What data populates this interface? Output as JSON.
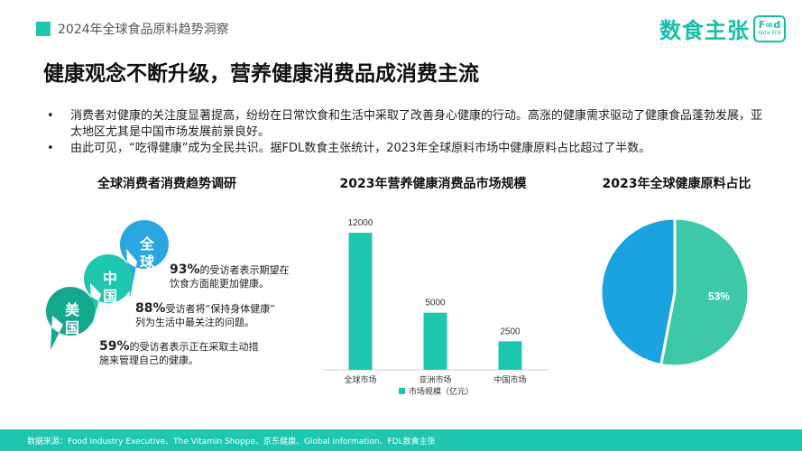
{
  "header": {
    "section_title": "2024年全球食品原料趋势洞察"
  },
  "logo": {
    "brand": "数食主张",
    "box_top": "F∞d",
    "box_bottom": "data link"
  },
  "main_title": "健康观念不断升级，营养健康消费品成消费主流",
  "bullets": [
    "消费者对健康的关注度显著提高，纷纷在日常饮食和生活中采取了改善身心健康的行动。高涨的健康需求驱动了健康食品蓬勃发展，亚太地区尤其是中国市场发展前景良好。",
    "由此可见，“吃得健康”成为全民共识。据FDL数食主张统计，2023年全球原料市场中健康原料占比超过了半数。"
  ],
  "bullet_marker": "•",
  "survey": {
    "title": "全球消费者消费趋势调研",
    "bubbles": [
      {
        "label": "全球",
        "color": "#2aa7e0"
      },
      {
        "label": "中国",
        "color": "#1fc7b0"
      },
      {
        "label": "美国",
        "color": "#14a88f"
      }
    ],
    "stats": [
      {
        "percent": "93%",
        "text_line1": "的受访者表示期望在",
        "text_line2": "饮食方面能更加健康。"
      },
      {
        "percent": "88%",
        "text_line1": "受访者将“保持身体健康”",
        "text_line2": "列为生活中最关注的问题。"
      },
      {
        "percent": "59%",
        "text_line1": "的受访者表示正在采取主动措",
        "text_line2": "施来管理自己的健康。"
      }
    ]
  },
  "market": {
    "title": "2023年营养健康消费品市场规模"
  },
  "share": {
    "title": "2023年全球健康原料占比"
  },
  "chart_data": [
    {
      "type": "bar",
      "title": "2023年营养健康消费品市场规模",
      "categories": [
        "全球市场",
        "亚洲市场",
        "中国市场"
      ],
      "series": [
        {
          "name": "市场规模（亿元）",
          "values": [
            12000,
            5000,
            2500
          ]
        }
      ],
      "data_labels": [
        "12000",
        "5000",
        "2500"
      ],
      "color": "#1fc7b0",
      "ylim": [
        0,
        12000
      ],
      "legend": "bottom",
      "grid": false
    },
    {
      "type": "pie",
      "title": "2023年全球健康原料占比",
      "slices": [
        {
          "value": 53,
          "label": "53%",
          "color": "#3dc9a8"
        },
        {
          "value": 47,
          "label": "",
          "color": "#1aa3e0"
        }
      ]
    }
  ],
  "footer": {
    "text": "数据来源：Food Industry Executive、The Vitamin Shoppe、京东健康、Global information、FDL数食主张"
  }
}
